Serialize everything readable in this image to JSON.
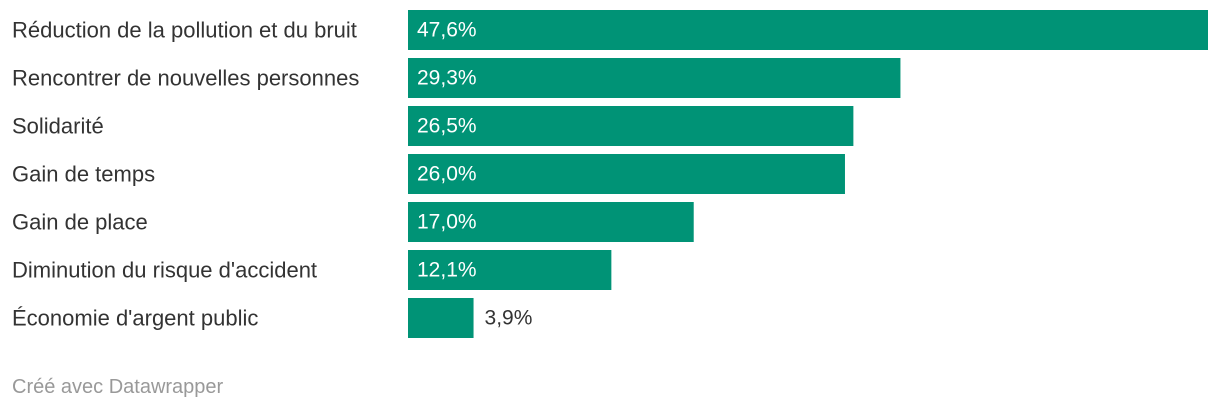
{
  "chart_data": {
    "type": "bar",
    "orientation": "horizontal",
    "categories": [
      "Réduction de la pollution et du bruit",
      "Rencontrer de nouvelles personnes",
      "Solidarité",
      "Gain de temps",
      "Gain de place",
      "Diminution du risque d'accident",
      "Économie d'argent public"
    ],
    "values": [
      47.6,
      29.3,
      26.5,
      26.0,
      17.0,
      12.1,
      3.9
    ],
    "value_labels": [
      "47,6%",
      "29,3%",
      "26,5%",
      "26,0%",
      "17,0%",
      "12,1%",
      "3,9%"
    ],
    "xlim": [
      0,
      47.6
    ],
    "bar_color": "#009376",
    "label_inside_color": "#ffffff",
    "label_outside_color": "#333333",
    "grid": false,
    "legend": "none"
  },
  "footer": {
    "credit": "Créé avec Datawrapper"
  }
}
